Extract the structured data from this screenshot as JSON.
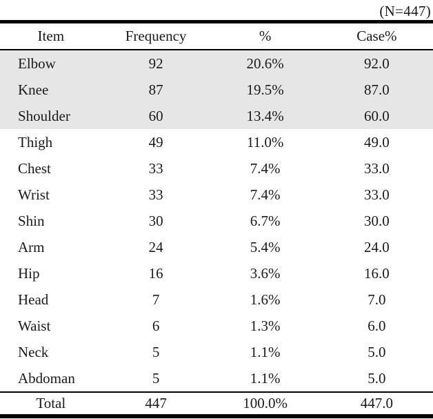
{
  "note": "(N=447)",
  "table": {
    "columns": [
      "Item",
      "Frequency",
      "%",
      "Case%"
    ],
    "rows": [
      {
        "item": "Elbow",
        "frequency": "92",
        "pct": "20.6%",
        "case_pct": "92.0",
        "highlighted": true
      },
      {
        "item": "Knee",
        "frequency": "87",
        "pct": "19.5%",
        "case_pct": "87.0",
        "highlighted": true
      },
      {
        "item": "Shoulder",
        "frequency": "60",
        "pct": "13.4%",
        "case_pct": "60.0",
        "highlighted": true
      },
      {
        "item": "Thigh",
        "frequency": "49",
        "pct": "11.0%",
        "case_pct": "49.0",
        "highlighted": false
      },
      {
        "item": "Chest",
        "frequency": "33",
        "pct": "7.4%",
        "case_pct": "33.0",
        "highlighted": false
      },
      {
        "item": "Wrist",
        "frequency": "33",
        "pct": "7.4%",
        "case_pct": "33.0",
        "highlighted": false
      },
      {
        "item": "Shin",
        "frequency": "30",
        "pct": "6.7%",
        "case_pct": "30.0",
        "highlighted": false
      },
      {
        "item": "Arm",
        "frequency": "24",
        "pct": "5.4%",
        "case_pct": "24.0",
        "highlighted": false
      },
      {
        "item": "Hip",
        "frequency": "16",
        "pct": "3.6%",
        "case_pct": "16.0",
        "highlighted": false
      },
      {
        "item": "Head",
        "frequency": "7",
        "pct": "1.6%",
        "case_pct": "7.0",
        "highlighted": false
      },
      {
        "item": "Waist",
        "frequency": "6",
        "pct": "1.3%",
        "case_pct": "6.0",
        "highlighted": false
      },
      {
        "item": "Neck",
        "frequency": "5",
        "pct": "1.1%",
        "case_pct": "5.0",
        "highlighted": false
      },
      {
        "item": "Abdoman",
        "frequency": "5",
        "pct": "1.1%",
        "case_pct": "5.0",
        "highlighted": false
      }
    ],
    "total": {
      "item": "Total",
      "frequency": "447",
      "pct": "100.0%",
      "case_pct": "447.0"
    }
  },
  "chart_data": {
    "type": "table",
    "title": "",
    "sample_size_note": "(N=447)",
    "columns": [
      "Item",
      "Frequency",
      "%",
      "Case%"
    ],
    "categories": [
      "Elbow",
      "Knee",
      "Shoulder",
      "Thigh",
      "Chest",
      "Wrist",
      "Shin",
      "Arm",
      "Hip",
      "Head",
      "Waist",
      "Neck",
      "Abdoman"
    ],
    "series": [
      {
        "name": "Frequency",
        "values": [
          92,
          87,
          60,
          49,
          33,
          33,
          30,
          24,
          16,
          7,
          6,
          5,
          5
        ]
      },
      {
        "name": "%",
        "values": [
          20.6,
          19.5,
          13.4,
          11.0,
          7.4,
          7.4,
          6.7,
          5.4,
          3.6,
          1.6,
          1.3,
          1.1,
          1.1
        ]
      },
      {
        "name": "Case%",
        "values": [
          92.0,
          87.0,
          60.0,
          49.0,
          33.0,
          33.0,
          30.0,
          24.0,
          16.0,
          7.0,
          6.0,
          5.0,
          5.0
        ]
      }
    ],
    "total": {
      "Frequency": 447,
      "%": 100.0,
      "Case%": 447.0
    }
  },
  "colors": {
    "highlight_row_bg": "#e6e6e6",
    "rule_color": "#000000",
    "text_color": "#1a1a1a"
  }
}
